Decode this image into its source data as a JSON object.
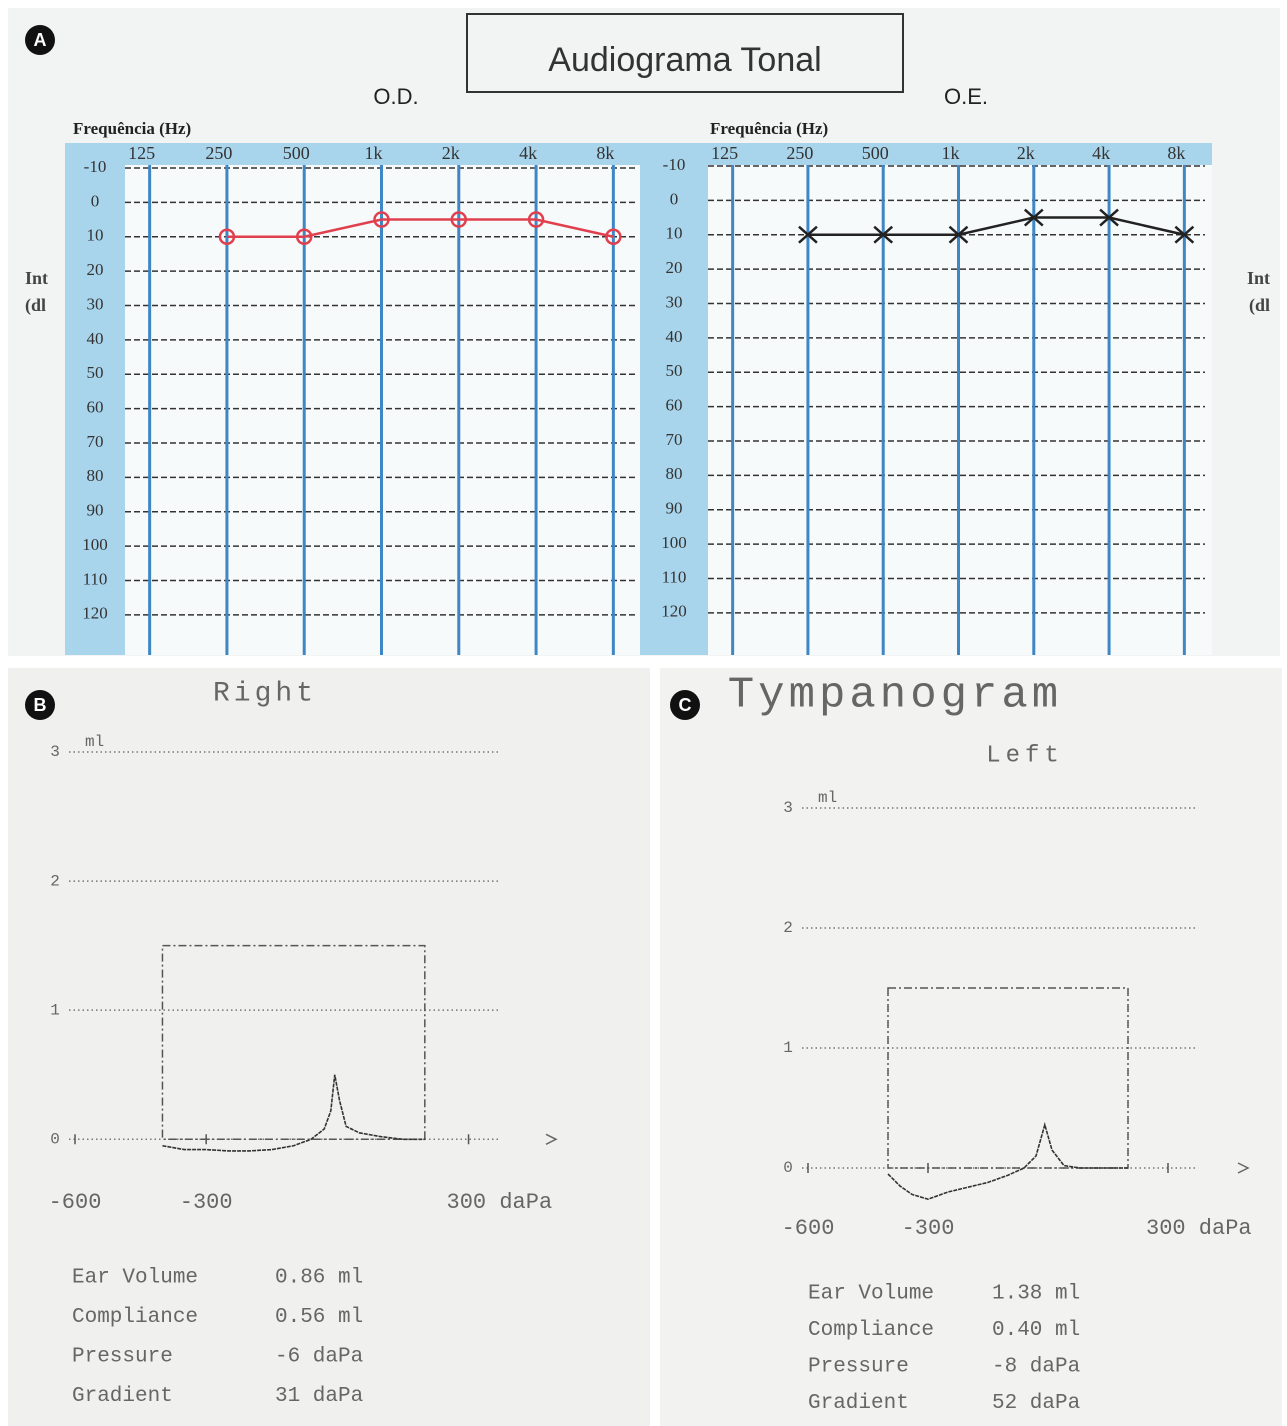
{
  "figure": {
    "title": "Audiograma Tonal",
    "panel_labels": [
      "A",
      "B",
      "C"
    ]
  },
  "chart_data": [
    {
      "type": "audiogram",
      "title": "O.D.",
      "xlabel": "Frequência (Hz)",
      "ylabel": [
        "Int",
        "(dl"
      ],
      "categories": [
        "125",
        "250",
        "500",
        "1k",
        "2k",
        "4k",
        "8k"
      ],
      "ylim": [
        -10,
        125
      ],
      "y_inverted": true,
      "yticks": [
        -10,
        0,
        10,
        20,
        30,
        40,
        50,
        60,
        70,
        80,
        90,
        100,
        110,
        120
      ],
      "grid": true,
      "series": [
        {
          "color": "#e0404e",
          "marker": "circle",
          "values": [
            null,
            10,
            10,
            5,
            5,
            5,
            10
          ]
        }
      ]
    },
    {
      "type": "audiogram",
      "title": "O.E.",
      "xlabel": "Frequência (Hz)",
      "ylabel": [
        "Int",
        "(dl"
      ],
      "categories": [
        "125",
        "250",
        "500",
        "1k",
        "2k",
        "4k",
        "8k"
      ],
      "ylim": [
        -10,
        125
      ],
      "y_inverted": true,
      "yticks": [
        -10,
        0,
        10,
        20,
        30,
        40,
        50,
        60,
        70,
        80,
        90,
        100,
        110,
        120
      ],
      "grid": true,
      "series": [
        {
          "color": "#222222",
          "marker": "x",
          "values": [
            null,
            10,
            10,
            10,
            5,
            5,
            10
          ]
        }
      ]
    },
    {
      "type": "tympanogram",
      "title": "Right",
      "ylabel": "ml",
      "xlim": [
        -600,
        500
      ],
      "ylim": [
        -0.3,
        3
      ],
      "xticks": [
        -600,
        -300,
        {
          "value": 300,
          "label": "300 daPa"
        }
      ],
      "yticks": [
        0,
        1,
        2,
        3
      ],
      "x": [
        -400,
        -350,
        -300,
        -250,
        -200,
        -150,
        -100,
        -60,
        -30,
        -15,
        -6,
        5,
        20,
        50,
        100,
        150,
        200
      ],
      "values": [
        -0.05,
        -0.08,
        -0.08,
        -0.09,
        -0.09,
        -0.08,
        -0.05,
        0.0,
        0.08,
        0.22,
        0.5,
        0.3,
        0.1,
        0.05,
        0.02,
        0.0,
        0.0
      ],
      "normal_box": {
        "x": [
          -400,
          200
        ],
        "y": [
          0,
          1.5
        ]
      },
      "stats": [
        {
          "label": "Ear Volume",
          "value": "0.86 ml"
        },
        {
          "label": "Compliance",
          "value": "0.56 ml"
        },
        {
          "label": "Pressure",
          "value": "-6 daPa"
        },
        {
          "label": "Gradient",
          "value": "31 daPa"
        }
      ]
    },
    {
      "type": "tympanogram",
      "title": "Tympanogram",
      "subtitle": "Left",
      "ylabel": "ml",
      "xlim": [
        -600,
        500
      ],
      "ylim": [
        -0.3,
        3
      ],
      "xticks": [
        -600,
        -300,
        {
          "value": 300,
          "label": "300 daPa"
        }
      ],
      "yticks": [
        0,
        1,
        2,
        3
      ],
      "x": [
        -400,
        -370,
        -340,
        -300,
        -250,
        -200,
        -150,
        -100,
        -60,
        -30,
        -8,
        10,
        40,
        80,
        120,
        160,
        200
      ],
      "values": [
        -0.05,
        -0.15,
        -0.22,
        -0.26,
        -0.2,
        -0.16,
        -0.12,
        -0.06,
        0.0,
        0.1,
        0.36,
        0.15,
        0.02,
        0.0,
        0.0,
        0.0,
        0.0
      ],
      "normal_box": {
        "x": [
          -400,
          200
        ],
        "y": [
          0,
          1.5
        ]
      },
      "stats": [
        {
          "label": "Ear Volume",
          "value": "1.38 ml"
        },
        {
          "label": "Compliance",
          "value": "0.40 ml"
        },
        {
          "label": "Pressure",
          "value": "-8 daPa"
        },
        {
          "label": "Gradient",
          "value": "52 daPa"
        }
      ]
    }
  ]
}
